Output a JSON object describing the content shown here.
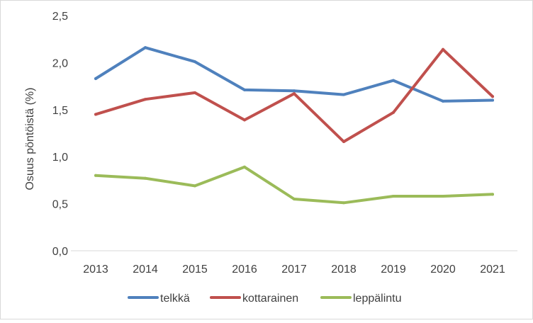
{
  "chart_data": {
    "type": "line",
    "title": "",
    "xlabel": "",
    "ylabel": "Osuus pöntöistä (%)",
    "categories": [
      "2013",
      "2014",
      "2015",
      "2016",
      "2017",
      "2018",
      "2019",
      "2020",
      "2021"
    ],
    "ylim": [
      0,
      2.5
    ],
    "yticks": [
      0,
      0.5,
      1.0,
      1.5,
      2.0,
      2.5
    ],
    "ytick_labels": [
      "0,0",
      "0,5",
      "1,0",
      "1,5",
      "2,0",
      "2,5"
    ],
    "grid": false,
    "legend_position": "bottom",
    "series": [
      {
        "name": "telkkä",
        "color": "#4f81bd",
        "values": [
          1.83,
          2.16,
          2.01,
          1.71,
          1.7,
          1.66,
          1.81,
          1.59,
          1.6
        ]
      },
      {
        "name": "kottarainen",
        "color": "#c0504d",
        "values": [
          1.45,
          1.61,
          1.68,
          1.39,
          1.67,
          1.16,
          1.47,
          2.14,
          1.64
        ]
      },
      {
        "name": "leppälintu",
        "color": "#9bbb59",
        "values": [
          0.8,
          0.77,
          0.69,
          0.89,
          0.55,
          0.51,
          0.58,
          0.58,
          0.6
        ]
      }
    ]
  }
}
